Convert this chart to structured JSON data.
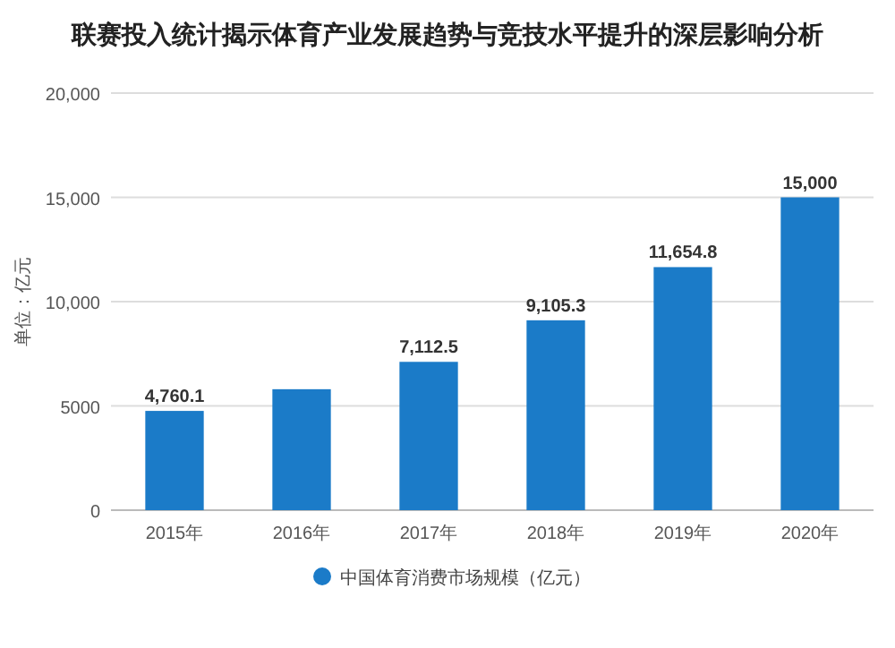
{
  "chart_data": {
    "type": "bar",
    "title": "联赛投入统计揭示体育产业发展趋势与竞技水平提升的深层影响分析",
    "ylabel": "单位：亿元",
    "categories": [
      "2015年",
      "2016年",
      "2017年",
      "2018年",
      "2019年",
      "2020年"
    ],
    "series": [
      {
        "name": "中国体育消费市场规模（亿元）",
        "color": "#1b7bc8",
        "values": [
          4760.1,
          5800,
          7112.5,
          9105.3,
          11654.8,
          15000
        ],
        "value_labels": [
          "4,760.1",
          null,
          "7,112.5",
          "9,105.3",
          "11,654.8",
          "15,000"
        ]
      }
    ],
    "ylim": [
      0,
      20000
    ],
    "yticks": [
      0,
      {
        "value": 5000,
        "label": "5000"
      },
      {
        "value": 10000,
        "label": "10,000"
      },
      {
        "value": 15000,
        "label": "15,000"
      },
      {
        "value": 20000,
        "label": "20,000"
      }
    ],
    "grid": "y",
    "legend": "bottom"
  }
}
